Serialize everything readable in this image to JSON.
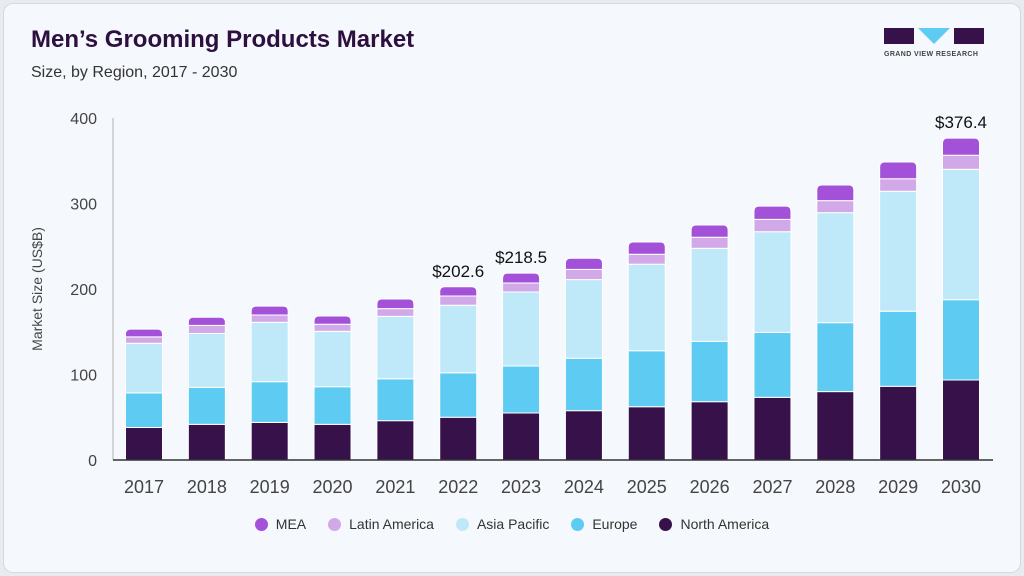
{
  "header": {
    "title": "Men’s Grooming Products Market",
    "subtitle": "Size, by Region, 2017 - 2030",
    "logo_text": "GRAND VIEW RESEARCH"
  },
  "chart_data": {
    "type": "bar",
    "stacked": true,
    "title": "Men’s Grooming Products Market",
    "subtitle": "Size, by Region, 2017 - 2030",
    "xlabel": "",
    "ylabel": "Market Size (US$B)",
    "ylim": [
      0,
      400
    ],
    "yticks": [
      0,
      100,
      200,
      300,
      400
    ],
    "grid": false,
    "legend_position": "bottom",
    "categories": [
      "2017",
      "2018",
      "2019",
      "2020",
      "2021",
      "2022",
      "2023",
      "2024",
      "2025",
      "2026",
      "2027",
      "2028",
      "2029",
      "2030"
    ],
    "series": [
      {
        "name": "North America",
        "color": "#36114a",
        "values": [
          38,
          41.7,
          44,
          41.7,
          46,
          50,
          55,
          57.7,
          62.3,
          68.2,
          73.3,
          80,
          86.2,
          93.6
        ]
      },
      {
        "name": "Europe",
        "color": "#5ecbf3",
        "values": [
          40.5,
          43.3,
          47.6,
          44,
          49,
          52,
          55,
          61.3,
          65.5,
          70.6,
          76,
          80.6,
          87.8,
          93.9
        ]
      },
      {
        "name": "Asia Pacific",
        "color": "#bfe9f8",
        "values": [
          58,
          63,
          69.4,
          64.8,
          73,
          79,
          86.5,
          92,
          101.2,
          108.8,
          117.7,
          128.7,
          140.3,
          152.5
        ]
      },
      {
        "name": "Latin America",
        "color": "#d2a9e8",
        "values": [
          7.5,
          9.5,
          8.6,
          8.2,
          9,
          10.8,
          10.5,
          12,
          11.6,
          12.9,
          14.5,
          14,
          14.7,
          16.4
        ]
      },
      {
        "name": "MEA",
        "color": "#a351d8",
        "values": [
          9,
          9.5,
          10.4,
          9.7,
          11.3,
          10.8,
          11.5,
          13,
          14.4,
          14.4,
          15.5,
          18.3,
          19.5,
          20
        ]
      }
    ],
    "annotations": [
      {
        "category": "2022",
        "text": "$202.6"
      },
      {
        "category": "2023",
        "text": "$218.5"
      },
      {
        "category": "2030",
        "text": "$376.4"
      }
    ],
    "legend_order": [
      "MEA",
      "Latin America",
      "Asia Pacific",
      "Europe",
      "North America"
    ]
  }
}
